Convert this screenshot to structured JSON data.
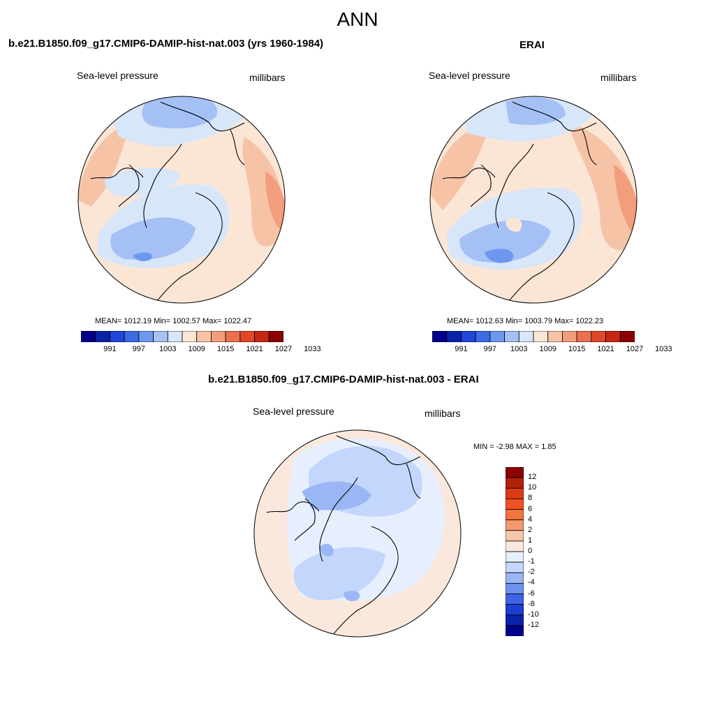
{
  "figure": {
    "title": "ANN"
  },
  "panels": [
    {
      "title": "b.e21.B1850.f09_g17.CMIP6-DAMIP-hist-nat.003 (yrs 1960-1984)",
      "variable": "Sea-level pressure",
      "units": "millibars",
      "stats": "MEAN= 1012.19  Min= 1002.57  Max= 1022.47",
      "mean": 1012.19,
      "min": 1002.57,
      "max": 1022.47
    },
    {
      "title": "ERAI",
      "variable": "Sea-level pressure",
      "units": "millibars",
      "stats": "MEAN= 1012.63  Min= 1003.79  Max= 1022.23",
      "mean": 1012.63,
      "min": 1003.79,
      "max": 1022.23
    },
    {
      "title": "b.e21.B1850.f09_g17.CMIP6-DAMIP-hist-nat.003 - ERAI",
      "variable": "Sea-level pressure",
      "units": "millibars",
      "stats": "MIN =  -2.98 MAX =   1.85",
      "min": -2.98,
      "max": 1.85
    }
  ],
  "colorbar_levels": {
    "labels": [
      "991",
      "997",
      "1003",
      "1009",
      "1015",
      "1021",
      "1027",
      "1033"
    ],
    "colors": [
      "#00008b",
      "#0a22a8",
      "#1f46d6",
      "#3b6be6",
      "#6d98f0",
      "#a4c0f5",
      "#d7e6f8",
      "#fbe6d6",
      "#f7c3a7",
      "#f29d7c",
      "#ea7150",
      "#e0482a",
      "#c42813",
      "#8b0000"
    ]
  },
  "colorbar_diff": {
    "labels": [
      "12",
      "10",
      "8",
      "6",
      "4",
      "2",
      "1",
      "0",
      "-1",
      "-2",
      "-4",
      "-6",
      "-8",
      "-10",
      "-12"
    ],
    "colors": [
      "#8b0000",
      "#b22208",
      "#dc3a12",
      "#f05224",
      "#f4743f",
      "#f49a6e",
      "#f7c6a8",
      "#fbe8dc",
      "#e7efff",
      "#c3d6fb",
      "#9ab6f5",
      "#6f91ee",
      "#3f64e6",
      "#1d40d4",
      "#0a22a8",
      "#00008b"
    ]
  },
  "map_colors": {
    "ocean_mean": "#fbe6d6",
    "blue_light": "#d7e6f8",
    "blue_mid": "#a4c0f5",
    "blue_deep": "#6d98f0",
    "orange_light": "#f7c3a7",
    "orange_mid": "#f29d7c",
    "diff_light_blue": "#e7efff",
    "diff_blue": "#c3d6fb",
    "diff_blue_mid": "#9ab6f5",
    "diff_orange": "#fbe8dc"
  }
}
